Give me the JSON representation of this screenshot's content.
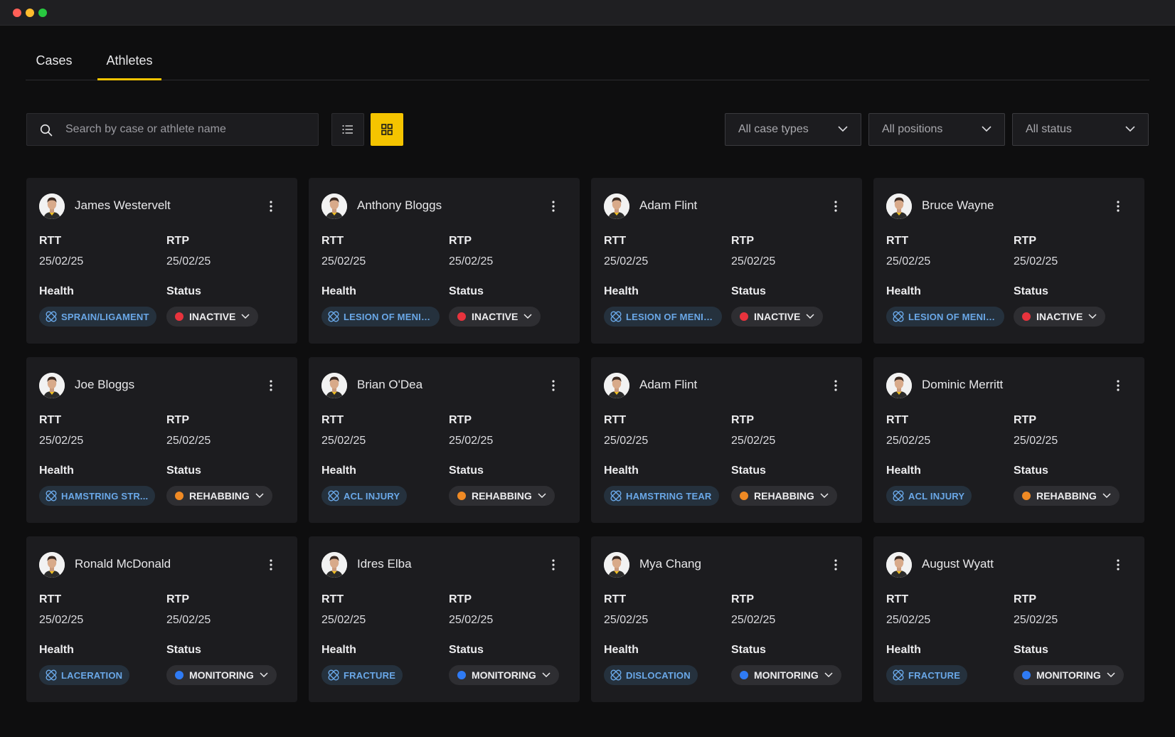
{
  "tabs": [
    {
      "label": "Cases",
      "active": false
    },
    {
      "label": "Athletes",
      "active": true
    }
  ],
  "search": {
    "placeholder": "Search by case or athlete name",
    "icon": "search-icon"
  },
  "view_toggle": {
    "list_icon": "list-icon",
    "grid_icon": "grid-icon",
    "active": "grid"
  },
  "filters": [
    {
      "label": "All case types"
    },
    {
      "label": "All positions"
    },
    {
      "label": "All status"
    }
  ],
  "labels": {
    "rtt": "RTT",
    "rtp": "RTP",
    "health": "Health",
    "status": "Status"
  },
  "colors": {
    "accent": "#f5c400",
    "inactive": "#e8333d",
    "rehabbing": "#f08a24",
    "monitoring": "#2f7bf5",
    "health_text": "#6aa8e8"
  },
  "athletes": [
    {
      "name": "James Westervelt",
      "rtt": "25/02/25",
      "rtp": "25/02/25",
      "health": "SPRAIN/LIGAMENT",
      "status": "INACTIVE",
      "status_color": "#e8333d"
    },
    {
      "name": "Anthony Bloggs",
      "rtt": "25/02/25",
      "rtp": "25/02/25",
      "health": "LESION OF MENIS...",
      "status": "INACTIVE",
      "status_color": "#e8333d"
    },
    {
      "name": "Adam Flint",
      "rtt": "25/02/25",
      "rtp": "25/02/25",
      "health": "LESION OF MENIS...",
      "status": "INACTIVE",
      "status_color": "#e8333d"
    },
    {
      "name": "Bruce Wayne",
      "rtt": "25/02/25",
      "rtp": "25/02/25",
      "health": "LESION OF MENIS...",
      "status": "INACTIVE",
      "status_color": "#e8333d"
    },
    {
      "name": "Joe Bloggs",
      "rtt": "25/02/25",
      "rtp": "25/02/25",
      "health": "HAMSTRING STR...",
      "status": "REHABBING",
      "status_color": "#f08a24"
    },
    {
      "name": "Brian O'Dea",
      "rtt": "25/02/25",
      "rtp": "25/02/25",
      "health": "ACL INJURY",
      "status": "REHABBING",
      "status_color": "#f08a24"
    },
    {
      "name": "Adam Flint",
      "rtt": "25/02/25",
      "rtp": "25/02/25",
      "health": "HAMSTRING TEAR",
      "status": "REHABBING",
      "status_color": "#f08a24"
    },
    {
      "name": "Dominic Merritt",
      "rtt": "25/02/25",
      "rtp": "25/02/25",
      "health": "ACL INJURY",
      "status": "REHABBING",
      "status_color": "#f08a24"
    },
    {
      "name": "Ronald McDonald",
      "rtt": "25/02/25",
      "rtp": "25/02/25",
      "health": "LACERATION",
      "status": "MONITORING",
      "status_color": "#2f7bf5"
    },
    {
      "name": "Idres Elba",
      "rtt": "25/02/25",
      "rtp": "25/02/25",
      "health": "FRACTURE",
      "status": "MONITORING",
      "status_color": "#2f7bf5"
    },
    {
      "name": "Mya Chang",
      "rtt": "25/02/25",
      "rtp": "25/02/25",
      "health": "DISLOCATION",
      "status": "MONITORING",
      "status_color": "#2f7bf5"
    },
    {
      "name": "August Wyatt",
      "rtt": "25/02/25",
      "rtp": "25/02/25",
      "health": "FRACTURE",
      "status": "MONITORING",
      "status_color": "#2f7bf5"
    }
  ]
}
